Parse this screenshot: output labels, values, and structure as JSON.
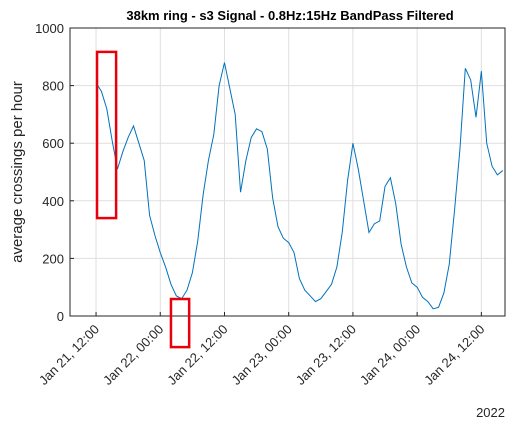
{
  "chart_data": {
    "type": "line",
    "title": "38km ring - s3 Signal - 0.8Hz:15Hz BandPass Filtered",
    "ylabel": "average crossings per hour",
    "x_secondary_label": "2022",
    "x": [
      "2022-01-21T12:00",
      "2022-01-21T13:00",
      "2022-01-21T14:00",
      "2022-01-21T15:00",
      "2022-01-21T16:00",
      "2022-01-21T17:00",
      "2022-01-21T18:00",
      "2022-01-21T19:00",
      "2022-01-21T20:00",
      "2022-01-21T21:00",
      "2022-01-21T22:00",
      "2022-01-21T23:00",
      "2022-01-22T00:00",
      "2022-01-22T01:00",
      "2022-01-22T02:00",
      "2022-01-22T03:00",
      "2022-01-22T04:00",
      "2022-01-22T05:00",
      "2022-01-22T06:00",
      "2022-01-22T07:00",
      "2022-01-22T08:00",
      "2022-01-22T09:00",
      "2022-01-22T10:00",
      "2022-01-22T11:00",
      "2022-01-22T12:00",
      "2022-01-22T13:00",
      "2022-01-22T14:00",
      "2022-01-22T15:00",
      "2022-01-22T16:00",
      "2022-01-22T17:00",
      "2022-01-22T18:00",
      "2022-01-22T19:00",
      "2022-01-22T20:00",
      "2022-01-22T21:00",
      "2022-01-22T22:00",
      "2022-01-22T23:00",
      "2022-01-23T00:00",
      "2022-01-23T01:00",
      "2022-01-23T02:00",
      "2022-01-23T03:00",
      "2022-01-23T04:00",
      "2022-01-23T05:00",
      "2022-01-23T06:00",
      "2022-01-23T07:00",
      "2022-01-23T08:00",
      "2022-01-23T09:00",
      "2022-01-23T10:00",
      "2022-01-23T11:00",
      "2022-01-23T12:00",
      "2022-01-23T13:00",
      "2022-01-23T14:00",
      "2022-01-23T15:00",
      "2022-01-23T16:00",
      "2022-01-23T17:00",
      "2022-01-23T18:00",
      "2022-01-23T19:00",
      "2022-01-23T20:00",
      "2022-01-23T21:00",
      "2022-01-23T22:00",
      "2022-01-23T23:00",
      "2022-01-24T00:00",
      "2022-01-24T01:00",
      "2022-01-24T02:00",
      "2022-01-24T03:00",
      "2022-01-24T04:00",
      "2022-01-24T05:00",
      "2022-01-24T06:00",
      "2022-01-24T07:00",
      "2022-01-24T08:00",
      "2022-01-24T09:00",
      "2022-01-24T10:00",
      "2022-01-24T11:00",
      "2022-01-24T12:00",
      "2022-01-24T13:00",
      "2022-01-24T14:00",
      "2022-01-24T15:00",
      "2022-01-24T16:00"
    ],
    "series": [
      {
        "color": "#0072bd",
        "values": [
          810,
          780,
          720,
          610,
          510,
          570,
          620,
          660,
          600,
          540,
          350,
          280,
          220,
          170,
          110,
          70,
          60,
          90,
          150,
          260,
          420,
          540,
          630,
          800,
          880,
          790,
          700,
          430,
          540,
          620,
          650,
          640,
          580,
          410,
          310,
          270,
          255,
          220,
          130,
          90,
          70,
          50,
          60,
          85,
          110,
          170,
          290,
          470,
          600,
          510,
          400,
          290,
          320,
          330,
          450,
          480,
          390,
          250,
          170,
          115,
          100,
          65,
          50,
          25,
          30,
          80,
          180,
          370,
          580,
          860,
          820,
          690,
          850,
          600,
          520,
          490,
          505
        ]
      }
    ],
    "xlim": [
      "2022-01-21T07:08",
      "2022-01-24T16:25"
    ],
    "xticks": [
      {
        "value": "2022-01-21T12:00",
        "label": "Jan 21, 12:00"
      },
      {
        "value": "2022-01-22T00:00",
        "label": "Jan 22, 00:00"
      },
      {
        "value": "2022-01-22T12:00",
        "label": "Jan 22, 12:00"
      },
      {
        "value": "2022-01-23T00:00",
        "label": "Jan 23, 00:00"
      },
      {
        "value": "2022-01-23T12:00",
        "label": "Jan 23, 12:00"
      },
      {
        "value": "2022-01-24T00:00",
        "label": "Jan 24, 00:00"
      },
      {
        "value": "2022-01-24T12:00",
        "label": "Jan 24, 12:00"
      }
    ],
    "ylim": [
      0,
      1000
    ],
    "yticks": [
      0,
      200,
      400,
      600,
      800,
      1000
    ],
    "grid": true,
    "annotations": [
      {
        "type": "rect",
        "color": "#e8000b",
        "x0": "2022-01-21T12:11",
        "x1": "2022-01-21T15:45",
        "y0": 340,
        "y1": 917
      },
      {
        "type": "rect",
        "color": "#e8000b",
        "x0": "2022-01-22T02:00",
        "x1": "2022-01-22T05:24",
        "y0": -108,
        "y1": 59
      }
    ]
  }
}
